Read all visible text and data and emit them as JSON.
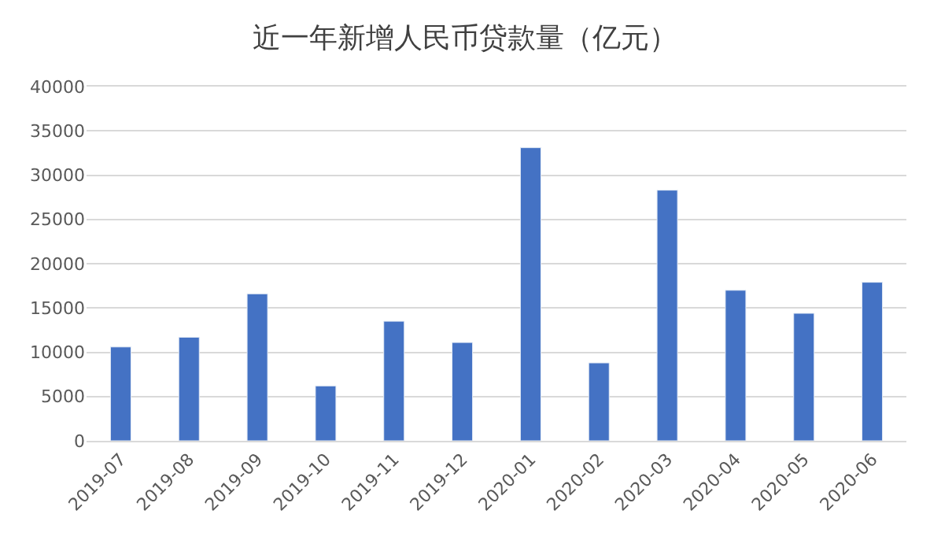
{
  "chart_data": {
    "type": "bar",
    "title": "近一年新增人民币贷款量（亿元）",
    "categories": [
      "2019-07",
      "2019-08",
      "2019-09",
      "2019-10",
      "2019-11",
      "2019-12",
      "2020-01",
      "2020-02",
      "2020-03",
      "2020-04",
      "2020-05",
      "2020-06"
    ],
    "series": [
      {
        "color": "#4472c4",
        "values": [
          10600,
          11700,
          16600,
          6200,
          13500,
          11100,
          33100,
          8800,
          28300,
          17000,
          14400,
          17900
        ]
      }
    ],
    "ylim": [
      0,
      40000
    ],
    "yticks": [
      0,
      5000,
      10000,
      15000,
      20000,
      25000,
      30000,
      35000,
      40000
    ],
    "grid": "y"
  }
}
